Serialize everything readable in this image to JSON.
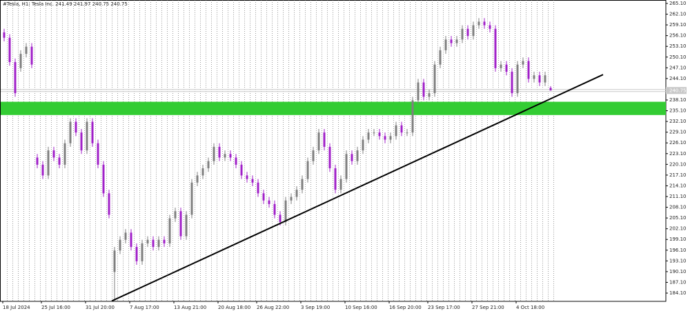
{
  "chart_data": {
    "type": "candlestick",
    "title": "#Tesla, H1:  Tesla Inc.  241.49 241.97 240.75 240.75",
    "categories": [
      "18 Jul 2024",
      null,
      null,
      null,
      null,
      null,
      null,
      "25 Jul 16:00",
      null,
      null,
      null,
      null,
      null,
      null,
      null,
      "31 Jul 20:00",
      null,
      null,
      null,
      null,
      null,
      null,
      null,
      "7 Aug 17:00",
      null,
      null,
      null,
      null,
      null,
      null,
      null,
      "13 Aug 21:00",
      null,
      null,
      null,
      null,
      null,
      null,
      null,
      "20 Aug 18:00",
      null,
      null,
      null,
      null,
      null,
      null,
      "26 Aug 22:00",
      null,
      null,
      null,
      null,
      null,
      null,
      null,
      "3 Sep 19:00",
      null,
      null,
      null,
      null,
      null,
      null,
      null,
      "10 Sep 16:00",
      null,
      null,
      null,
      null,
      null,
      null,
      null,
      "16 Sep 20:00",
      null,
      null,
      null,
      null,
      null,
      null,
      "23 Sep 17:00",
      null,
      null,
      null,
      null,
      null,
      null,
      null,
      "27 Sep 21:00",
      null,
      null,
      null,
      null,
      null,
      null,
      null,
      "4 Oct 18:00",
      null,
      null,
      null,
      null,
      null,
      null
    ],
    "open": [
      257,
      255.5,
      248.7,
      247,
      251,
      253,
      222,
      220,
      217,
      224,
      222,
      220,
      226,
      232,
      229,
      224,
      232,
      226,
      220,
      212,
      190,
      196,
      199,
      201,
      197,
      193,
      198,
      199,
      197,
      199,
      198,
      205,
      207,
      200,
      206,
      215,
      217,
      219,
      221,
      225,
      222,
      223,
      222,
      220,
      217,
      216,
      215,
      212,
      210,
      209,
      206,
      204,
      210,
      211,
      213,
      216,
      221,
      224,
      229,
      225,
      219,
      213,
      216,
      223,
      221,
      224,
      227,
      229,
      229,
      228,
      227,
      228,
      231,
      229,
      229,
      238,
      243,
      239,
      240,
      248,
      252,
      255,
      254,
      255,
      258,
      256,
      259,
      260,
      259,
      258,
      247,
      248,
      246,
      240,
      248,
      249,
      244,
      245,
      243,
      241.49
    ],
    "high": [
      258,
      256.5,
      249.7,
      252,
      254,
      254,
      223,
      221,
      225,
      225,
      223,
      227,
      233,
      233,
      230,
      233,
      233,
      227,
      221,
      213,
      197,
      200,
      202,
      202,
      198,
      199,
      200,
      200,
      200,
      200,
      206,
      208,
      208,
      207,
      216,
      218,
      220,
      222,
      226,
      226,
      224,
      224,
      223,
      221,
      218,
      217,
      216,
      213,
      211,
      210,
      207,
      211,
      212,
      214,
      217,
      222,
      225,
      230,
      230,
      226,
      220,
      217,
      224,
      224,
      225,
      228,
      230,
      230,
      230,
      229,
      229,
      232,
      232,
      230,
      239,
      244,
      244,
      241,
      249,
      253,
      256,
      256,
      256,
      259,
      259,
      260,
      261,
      261,
      260,
      259,
      249,
      249,
      247,
      249,
      250,
      250,
      246,
      246,
      246,
      241.97
    ],
    "low": [
      254.5,
      247.7,
      239,
      246,
      250,
      247,
      219,
      216,
      216,
      221,
      219,
      219,
      225,
      228,
      223,
      223,
      225,
      219,
      211,
      205,
      182,
      195,
      198,
      196,
      192,
      192,
      197,
      196,
      196,
      197,
      197,
      204,
      199,
      199,
      205,
      214,
      216,
      218,
      220,
      221,
      221,
      221,
      219,
      216,
      215,
      214,
      211,
      209,
      208,
      205,
      203,
      203,
      209,
      210,
      212,
      215,
      220,
      223,
      224,
      218,
      212,
      212,
      215,
      220,
      220,
      223,
      226,
      228,
      227,
      226,
      226,
      227,
      228,
      228,
      228,
      237,
      238,
      238,
      239,
      247,
      251,
      253,
      253,
      254,
      255,
      255,
      258,
      258,
      257,
      246,
      246,
      245,
      239,
      239,
      247,
      243,
      243,
      242,
      242,
      240.75
    ],
    "close": [
      255.5,
      248.7,
      240,
      251,
      253,
      248,
      220,
      217,
      224,
      222,
      220,
      226,
      232,
      229,
      224,
      232,
      226,
      220,
      212,
      206,
      196,
      199,
      201,
      197,
      193,
      198,
      199,
      197,
      199,
      198,
      205,
      207,
      200,
      206,
      215,
      217,
      219,
      221,
      225,
      222,
      223,
      222,
      220,
      217,
      216,
      215,
      212,
      210,
      209,
      206,
      204,
      210,
      211,
      213,
      216,
      221,
      224,
      229,
      225,
      219,
      213,
      216,
      223,
      221,
      224,
      227,
      229,
      229,
      228,
      227,
      228,
      231,
      229,
      229,
      238,
      243,
      239,
      240,
      248,
      252,
      255,
      254,
      255,
      258,
      256,
      259,
      260,
      259,
      258,
      247,
      248,
      246,
      240,
      248,
      249,
      244,
      245,
      243,
      245,
      240.75
    ],
    "up_color": "#7f7f7f",
    "down_color": "#a020c8",
    "ylim": [
      181.79,
      266.06
    ],
    "yticks": [
      {
        "value": 184.1,
        "label": "184.10"
      },
      {
        "value": 187.1,
        "label": "187.10"
      },
      {
        "value": 190.1,
        "label": "190.10"
      },
      {
        "value": 193.1,
        "label": "193.10"
      },
      {
        "value": 196.1,
        "label": "196.10"
      },
      {
        "value": 199.1,
        "label": "199.10"
      },
      {
        "value": 202.1,
        "label": "202.10"
      },
      {
        "value": 205.1,
        "label": "205.10"
      },
      {
        "value": 208.1,
        "label": "208.10"
      },
      {
        "value": 211.1,
        "label": "211.10"
      },
      {
        "value": 214.1,
        "label": "214.10"
      },
      {
        "value": 217.1,
        "label": "217.10"
      },
      {
        "value": 220.1,
        "label": "220.10"
      },
      {
        "value": 223.1,
        "label": "223.10"
      },
      {
        "value": 226.1,
        "label": "226.10"
      },
      {
        "value": 229.1,
        "label": "229.10"
      },
      {
        "value": 232.1,
        "label": "232.10"
      },
      {
        "value": 235.1,
        "label": "235.10"
      },
      {
        "value": 238.1,
        "label": "238.10"
      },
      {
        "value": 241.1,
        "label": "241.10"
      },
      {
        "value": 244.1,
        "label": "244.10"
      },
      {
        "value": 247.1,
        "label": "247.10"
      },
      {
        "value": 250.1,
        "label": "250.10"
      },
      {
        "value": 253.1,
        "label": "253.10"
      },
      {
        "value": 256.1,
        "label": "256.10"
      },
      {
        "value": 259.1,
        "label": "259.10"
      },
      {
        "value": 262.1,
        "label": "262.10"
      },
      {
        "value": 265.1,
        "label": "265.10"
      }
    ],
    "grid": true,
    "zone": {
      "low": 233.9,
      "high": 237.6,
      "color": "#33cc33"
    },
    "trendline": {
      "x": [
        19.5,
        108.5
      ],
      "y": [
        181.9,
        245.2
      ],
      "color": "#000000"
    },
    "last_price": 240.75
  }
}
